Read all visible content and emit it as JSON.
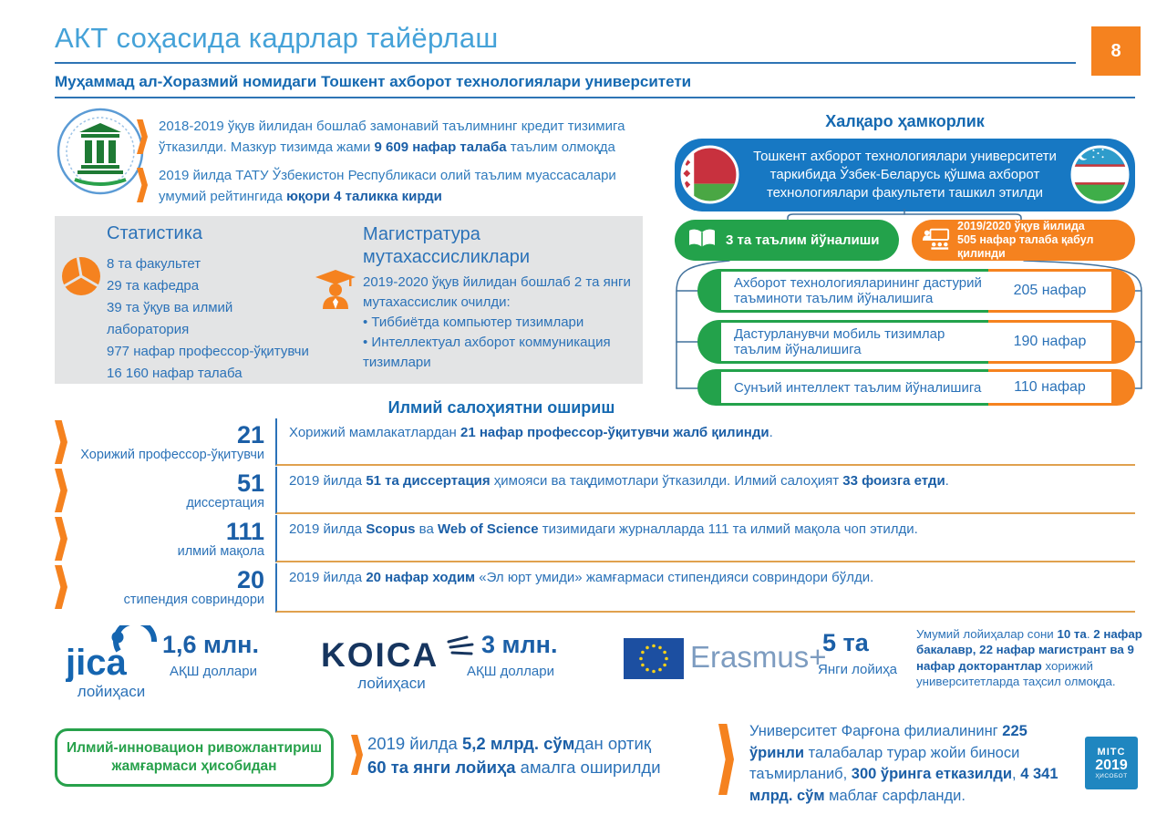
{
  "page": {
    "number": "8",
    "title": "АКТ соҳасида кадрлар тайёрлаш",
    "subtitle": "Муҳаммад ал-Хоразмий номидаги Тошкент ахборот технологиялари университети"
  },
  "intro": {
    "bullets": [
      [
        {
          "t": "2018-2019 ўқув йилидан бошлаб замонавий таълимнинг кредит тизимига ўтказилди. Мазкур тизимда жами "
        },
        {
          "t": "9 609 нафар талаба",
          "b": true
        },
        {
          "t": " таълим олмоқда"
        }
      ],
      [
        {
          "t": "2019 йилда ТАТУ Ўзбекистон Республикаси олий таълим муассасалари умумий рейтингида "
        },
        {
          "t": "юқори 4 таликка кирди",
          "b": true
        }
      ]
    ]
  },
  "stats": {
    "heading": "Статистика",
    "items": [
      "8 та факультет",
      "29 та кафедра",
      "39 та ўқув ва илмий лаборатория",
      "977 нафар профессор-ўқитувчи",
      "16 160 нафар талаба"
    ]
  },
  "magistracy": {
    "heading": "Магистратура мутахассисликлари",
    "intro": "2019-2020 ўқув йилидан бошлаб 2 та янги мутахассислик очилди:",
    "bullets": [
      "Тиббиётда компьютер тизимлари",
      "Интеллектуал ахборот коммуникация тизимлари"
    ]
  },
  "international": {
    "heading": "Халқаро ҳамкорлик",
    "banner": "Тошкент ахборот технологиялари университети таркибида Ўзбек-Беларусь қўшма ахборот технологиялари факультети ташкил этилди",
    "directions_pill": "3 та таълим йўналиши",
    "admission_pill_line1": "2019/2020 ўқув йилида",
    "admission_pill_line2": "505 нафар талаба қабул қилинди",
    "directions": [
      {
        "label": "Ахборот технологияларининг дастурий таъминоти таълим йўналишига",
        "value": "205 нафар"
      },
      {
        "label": "Дастурланувчи мобиль тизимлар таълим йўналишига",
        "value": "190 нафар"
      },
      {
        "label": "Сунъий интеллект таълим йўналишига",
        "value": "110 нафар"
      }
    ]
  },
  "science": {
    "heading": "Илмий салоҳиятни ошириш",
    "rows": [
      {
        "number": "21",
        "label": "Хорижий профессор-ўқитувчи",
        "text": [
          {
            "t": "Хорижий мамлакатлардан "
          },
          {
            "t": "21 нафар профессор-ўқитувчи жалб қилинди",
            "b": true
          },
          {
            "t": "."
          }
        ]
      },
      {
        "number": "51",
        "label": "диссертация",
        "text": [
          {
            "t": "2019 йилда "
          },
          {
            "t": "51 та диссертация",
            "b": true
          },
          {
            "t": " ҳимояси ва тақдимотлари ўтказилди. Илмий салоҳият "
          },
          {
            "t": "33 фоизга етди",
            "b": true
          },
          {
            "t": "."
          }
        ]
      },
      {
        "number": "111",
        "label": "илмий мақола",
        "text": [
          {
            "t": "2019 йилда "
          },
          {
            "t": "Scopus",
            "b": true
          },
          {
            "t": " ва "
          },
          {
            "t": "Web of Science",
            "b": true
          },
          {
            "t": " тизимидаги журналларда 111 та илмий мақола чоп этилди."
          }
        ]
      },
      {
        "number": "20",
        "label": "стипендия совриндори",
        "text": [
          {
            "t": "2019 йилда "
          },
          {
            "t": "20 нафар ходим",
            "b": true
          },
          {
            "t": " «Эл юрт умиди» жамғармаси стипендияси совриндори бўлди."
          }
        ]
      }
    ]
  },
  "projects": {
    "jica": {
      "logo": "jica",
      "label": "лойиҳаси",
      "amount": "1,6 млн.",
      "unit": "АҚШ доллари"
    },
    "koica": {
      "logo": "KOICA",
      "label": "лойиҳаси",
      "amount": "3 млн.",
      "unit": "АҚШ доллари"
    },
    "erasmus": {
      "logo": "Erasmus+",
      "amount": "5 та",
      "unit": "Янги лойиҳа"
    },
    "summary": [
      {
        "t": "Умумий лойиҳалар сони "
      },
      {
        "t": "10 та",
        "b": true
      },
      {
        "t": ". "
      },
      {
        "t": "2 нафар бакалавр, 22 нафар магистрант ва 9 нафар докторантлар",
        "b": true
      },
      {
        "t": " хорижий университетларда таҳсил олмоқда."
      }
    ]
  },
  "bottom": {
    "fund_box_line1": "Илмий-инновацион ривожлантириш",
    "fund_box_line2": "жамғармаси ҳисобидан",
    "fund_text": [
      {
        "t": "2019 йилда "
      },
      {
        "t": "5,2 млрд. сўм",
        "b": true
      },
      {
        "t": "дан ортиқ "
      },
      {
        "t": "60 та янги лойиҳа",
        "b": true
      },
      {
        "t": " амалга оширилди"
      }
    ],
    "fergana": [
      {
        "t": "Университет Фарғона филиалининг "
      },
      {
        "t": "225 ўринли",
        "b": true
      },
      {
        "t": " талабалар турар жойи биноси таъмирланиб, "
      },
      {
        "t": "300 ўринга етказилди",
        "b": true
      },
      {
        "t": ", "
      },
      {
        "t": "4 341 млрд. сўм",
        "b": true
      },
      {
        "t": " маблағ сарфланди."
      }
    ],
    "badge": {
      "line1": "MITC",
      "line2": "2019",
      "line3": "ҲИСОБОТ"
    }
  },
  "icons": {
    "university-logo-icon": "classical building in circle",
    "chevron-icon": "orange arrow marker",
    "pie-chart-icon": "orange pie chart",
    "graduate-icon": "graduate with mortarboard",
    "book-icon": "open book",
    "classroom-icon": "teacher and students",
    "belarus-flag-icon": "flag of Belarus",
    "uzbekistan-flag-icon": "flag of Uzbekistan",
    "eu-flag-icon": "flag of the European Union"
  },
  "colors": {
    "accent_orange": "#f5821f",
    "accent_green": "#23a24b",
    "banner_blue": "#1778c3",
    "title_blue": "#45a2d8",
    "text_blue": "#2b72b8",
    "dark_blue": "#1b5fa7",
    "badge_blue": "#1f86c0"
  }
}
